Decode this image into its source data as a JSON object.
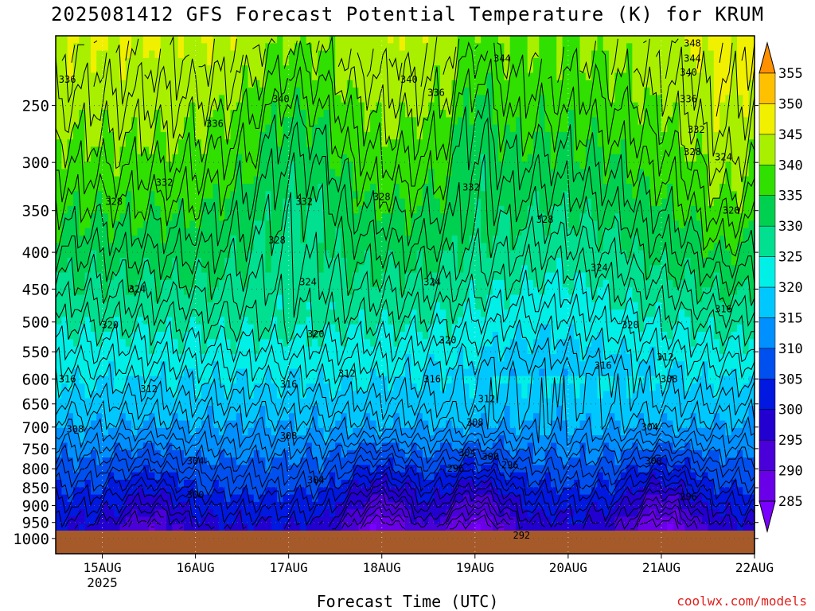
{
  "title": "2025081412 GFS Forecast Potential Temperature (K) for KRUM",
  "xlabel": "Forecast Time (UTC)",
  "credit": "coolwx.com/models",
  "colors": {
    "ground": "#a65a2a",
    "grid": "#555555",
    "contour": "#000000",
    "credit": "#e0201c"
  },
  "chart_data": {
    "type": "heatmap",
    "title": "2025081412 GFS Forecast Potential Temperature (K) for KRUM",
    "xlabel": "Forecast Time (UTC)",
    "ylabel": "",
    "x_ticks": [
      "15AUG",
      "16AUG",
      "17AUG",
      "18AUG",
      "19AUG",
      "20AUG",
      "21AUG",
      "22AUG"
    ],
    "x_year_label": "2025",
    "x_range_hours": [
      0,
      180
    ],
    "x_tick_hours": [
      12,
      36,
      60,
      84,
      108,
      132,
      156,
      180
    ],
    "y_scale": "log-pressure",
    "y_range_hpa": [
      1050,
      200
    ],
    "y_ticks": [
      250,
      300,
      350,
      400,
      450,
      500,
      550,
      600,
      650,
      700,
      750,
      800,
      850,
      900,
      950,
      1000
    ],
    "colorbar": {
      "levels": [
        285,
        290,
        295,
        300,
        305,
        310,
        315,
        320,
        325,
        330,
        335,
        340,
        345,
        350,
        355
      ],
      "colors": [
        "#7a00ff",
        "#6a00e8",
        "#4a00d8",
        "#2200d0",
        "#0018e0",
        "#0050f0",
        "#0090ff",
        "#00c8ff",
        "#00f0e8",
        "#00e090",
        "#00d050",
        "#30e000",
        "#a8f000",
        "#f0f000",
        "#ffc000",
        "#ff9000"
      ]
    },
    "contour_labels": [
      {
        "t": 3,
        "p": 230,
        "v": "336"
      },
      {
        "t": 15,
        "p": 340,
        "v": "328"
      },
      {
        "t": 3,
        "p": 600,
        "v": "316"
      },
      {
        "t": 5,
        "p": 705,
        "v": "308"
      },
      {
        "t": 28,
        "p": 320,
        "v": "332"
      },
      {
        "t": 21,
        "p": 450,
        "v": "324"
      },
      {
        "t": 14,
        "p": 505,
        "v": "320"
      },
      {
        "t": 24,
        "p": 620,
        "v": "312"
      },
      {
        "t": 36,
        "p": 780,
        "v": "304"
      },
      {
        "t": 41,
        "p": 265,
        "v": "336"
      },
      {
        "t": 36,
        "p": 870,
        "v": "300"
      },
      {
        "t": 58,
        "p": 245,
        "v": "340"
      },
      {
        "t": 64,
        "p": 340,
        "v": "332"
      },
      {
        "t": 57,
        "p": 385,
        "v": "328"
      },
      {
        "t": 65,
        "p": 440,
        "v": "324"
      },
      {
        "t": 67,
        "p": 520,
        "v": "320"
      },
      {
        "t": 60,
        "p": 610,
        "v": "316"
      },
      {
        "t": 60,
        "p": 720,
        "v": "308"
      },
      {
        "t": 67,
        "p": 830,
        "v": "304"
      },
      {
        "t": 75,
        "p": 590,
        "v": "312"
      },
      {
        "t": 84,
        "p": 335,
        "v": "328"
      },
      {
        "t": 91,
        "p": 230,
        "v": "340"
      },
      {
        "t": 98,
        "p": 240,
        "v": "336"
      },
      {
        "t": 97,
        "p": 440,
        "v": "324"
      },
      {
        "t": 101,
        "p": 530,
        "v": "320"
      },
      {
        "t": 97,
        "p": 600,
        "v": "316"
      },
      {
        "t": 103,
        "p": 800,
        "v": "296"
      },
      {
        "t": 107,
        "p": 325,
        "v": "332"
      },
      {
        "t": 111,
        "p": 640,
        "v": "312"
      },
      {
        "t": 108,
        "p": 690,
        "v": "308"
      },
      {
        "t": 106,
        "p": 760,
        "v": "304"
      },
      {
        "t": 112,
        "p": 770,
        "v": "300"
      },
      {
        "t": 117,
        "p": 790,
        "v": "296"
      },
      {
        "t": 115,
        "p": 215,
        "v": "344"
      },
      {
        "t": 126,
        "p": 360,
        "v": "328"
      },
      {
        "t": 120,
        "p": 990,
        "v": "292"
      },
      {
        "t": 140,
        "p": 420,
        "v": "324"
      },
      {
        "t": 148,
        "p": 505,
        "v": "320"
      },
      {
        "t": 141,
        "p": 575,
        "v": "316"
      },
      {
        "t": 153,
        "p": 700,
        "v": "304"
      },
      {
        "t": 154,
        "p": 780,
        "v": "300"
      },
      {
        "t": 163,
        "p": 875,
        "v": "296"
      },
      {
        "t": 158,
        "p": 600,
        "v": "308"
      },
      {
        "t": 157,
        "p": 560,
        "v": "312"
      },
      {
        "t": 164,
        "p": 205,
        "v": "348"
      },
      {
        "t": 164,
        "p": 215,
        "v": "344"
      },
      {
        "t": 163,
        "p": 225,
        "v": "340"
      },
      {
        "t": 163,
        "p": 245,
        "v": "336"
      },
      {
        "t": 165,
        "p": 270,
        "v": "332"
      },
      {
        "t": 164,
        "p": 290,
        "v": "328"
      },
      {
        "t": 172,
        "p": 295,
        "v": "324"
      },
      {
        "t": 174,
        "p": 350,
        "v": "320"
      },
      {
        "t": 172,
        "p": 480,
        "v": "316"
      }
    ],
    "grid": true,
    "legend": "right colorbar"
  }
}
